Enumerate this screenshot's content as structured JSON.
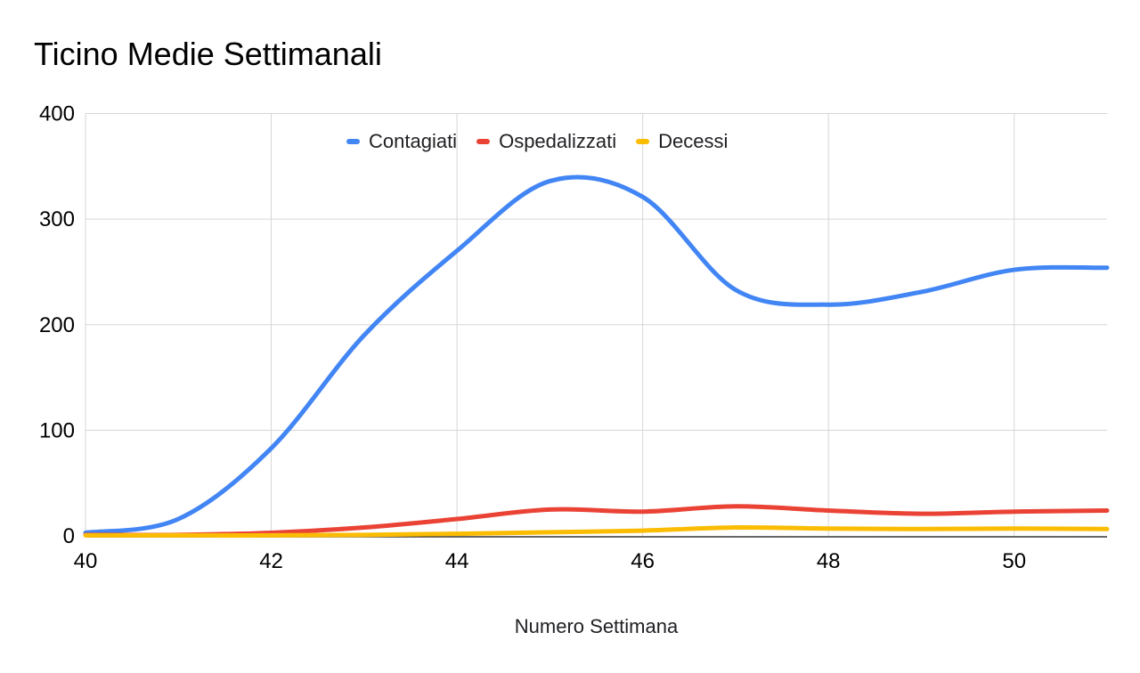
{
  "title": "Ticino Medie Settimanali",
  "background_color": "#ffffff",
  "grid_color": "#d6d6d6",
  "baseline_color": "#333333",
  "text_color": "#000000",
  "chart_data": {
    "type": "line",
    "smooth": true,
    "title": "Ticino Medie Settimanali",
    "xlabel": "Numero Settimana",
    "ylabel": "",
    "x": [
      40,
      41,
      42,
      43,
      44,
      45,
      46,
      47,
      48,
      49,
      50,
      51
    ],
    "series": [
      {
        "name": "Contagiati",
        "color": "#4285F4",
        "values": [
          3,
          16,
          83,
          190,
          270,
          336,
          321,
          233,
          219,
          231,
          252,
          254
        ]
      },
      {
        "name": "Ospedalizzati",
        "color": "#EA4335",
        "values": [
          1,
          1,
          3,
          8,
          16,
          25,
          23,
          28,
          24,
          21,
          23,
          24
        ]
      },
      {
        "name": "Decessi",
        "color": "#FBBC04",
        "values": [
          0.5,
          0.5,
          0.5,
          1,
          2,
          3.5,
          5,
          8,
          7,
          6.5,
          7,
          6.5
        ]
      }
    ],
    "xlim": [
      40,
      51
    ],
    "ylim": [
      0,
      400
    ],
    "xticks": [
      40,
      42,
      44,
      46,
      48,
      50
    ],
    "yticks": [
      0,
      100,
      200,
      300,
      400
    ],
    "grid": true,
    "legend_position": "top-center"
  }
}
